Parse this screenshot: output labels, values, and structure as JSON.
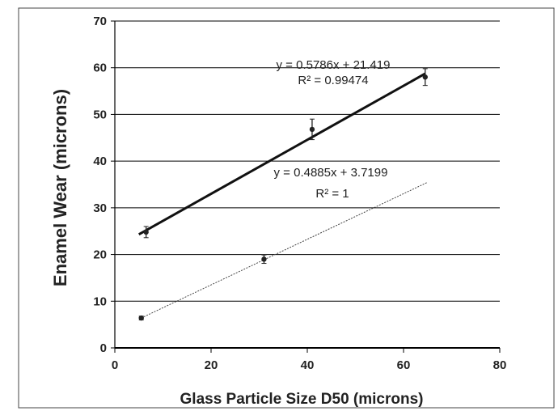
{
  "chart_data": {
    "type": "scatter",
    "title": "",
    "xlabel": "Glass Particle Size D50 (microns)",
    "ylabel": "Enamel Wear (microns)",
    "xlim": [
      0,
      80
    ],
    "ylim": [
      0,
      70
    ],
    "x_ticks": [
      "0",
      "20",
      "40",
      "60",
      "80"
    ],
    "y_ticks": [
      "0",
      "10",
      "20",
      "30",
      "40",
      "50",
      "60",
      "70"
    ],
    "grid": "horizontal",
    "colors": {
      "points": "#222222",
      "upper_line": "#111111",
      "lower_line": "#444444",
      "grid": "#000000"
    },
    "series": [
      {
        "points": [
          {
            "x": 6.5,
            "y": 24.8,
            "err": 1.2
          },
          {
            "x": 41,
            "y": 46.8,
            "err": 2.2
          },
          {
            "x": 64.5,
            "y": 58.0,
            "err": 1.8
          }
        ],
        "trendline": {
          "slope": 0.5786,
          "intercept": 21.419,
          "x_range": [
            5,
            64.5
          ]
        },
        "equation": "y = 0.5786x + 21.419",
        "r_squared": "R² = 0.99474"
      },
      {
        "points": [
          {
            "x": 5.5,
            "y": 6.4,
            "err": 0.4
          },
          {
            "x": 31,
            "y": 19.0,
            "err": 0.9
          }
        ],
        "trendline": {
          "slope": 0.4885,
          "intercept": 3.7199,
          "x_range": [
            5.5,
            65
          ]
        },
        "equation": "y = 0.4885x + 3.7199",
        "r_squared": "R² = 1"
      }
    ]
  }
}
